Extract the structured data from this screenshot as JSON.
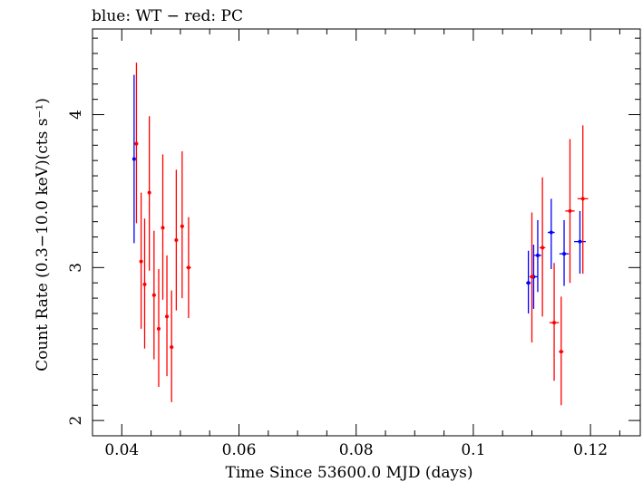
{
  "chart_data": {
    "type": "scatter",
    "title": "blue: WT − red: PC",
    "xlabel": "Time Since 53600.0 MJD (days)",
    "ylabel": "Count Rate (0.3−10.0 keV)(cts s⁻¹)",
    "xlim": [
      0.035,
      0.1285
    ],
    "ylim": [
      1.9,
      4.56
    ],
    "x_ticks": [
      0.04,
      0.06,
      0.08,
      0.1,
      0.12
    ],
    "x_tick_labels": [
      "0.04",
      "0.06",
      "0.08",
      "0.1",
      "0.12"
    ],
    "y_ticks": [
      2,
      3,
      4
    ],
    "y_tick_labels": [
      "2",
      "3",
      "4"
    ],
    "grid": false,
    "series": [
      {
        "name": "WT",
        "color": "#0000ff",
        "points": [
          {
            "x": 0.0421,
            "y": 3.71,
            "xerr": 0.0001,
            "ylo": 3.16,
            "yhi": 4.26
          },
          {
            "x": 0.1094,
            "y": 2.9,
            "xerr": 0.0004,
            "ylo": 2.7,
            "yhi": 3.11
          },
          {
            "x": 0.1103,
            "y": 2.94,
            "xerr": 0.0007,
            "ylo": 2.73,
            "yhi": 3.15
          },
          {
            "x": 0.111,
            "y": 3.08,
            "xerr": 0.0006,
            "ylo": 2.84,
            "yhi": 3.31
          },
          {
            "x": 0.1133,
            "y": 3.23,
            "xerr": 0.0006,
            "ylo": 2.99,
            "yhi": 3.45
          },
          {
            "x": 0.1155,
            "y": 3.09,
            "xerr": 0.0008,
            "ylo": 2.88,
            "yhi": 3.31
          },
          {
            "x": 0.1182,
            "y": 3.17,
            "xerr": 0.001,
            "ylo": 2.96,
            "yhi": 3.37
          }
        ]
      },
      {
        "name": "PC",
        "color": "#ff0000",
        "points": [
          {
            "x": 0.0425,
            "y": 3.81,
            "xerr": 0.0002,
            "ylo": 3.29,
            "yhi": 4.34
          },
          {
            "x": 0.0433,
            "y": 3.04,
            "xerr": 0.0003,
            "ylo": 2.6,
            "yhi": 3.49
          },
          {
            "x": 0.0439,
            "y": 2.89,
            "xerr": 0.0003,
            "ylo": 2.47,
            "yhi": 3.32
          },
          {
            "x": 0.0447,
            "y": 3.49,
            "xerr": 0.0002,
            "ylo": 2.98,
            "yhi": 3.99
          },
          {
            "x": 0.0455,
            "y": 2.82,
            "xerr": 0.0003,
            "ylo": 2.4,
            "yhi": 3.24
          },
          {
            "x": 0.0463,
            "y": 2.6,
            "xerr": 0.0003,
            "ylo": 2.22,
            "yhi": 2.99
          },
          {
            "x": 0.047,
            "y": 3.26,
            "xerr": 0.0003,
            "ylo": 2.79,
            "yhi": 3.74
          },
          {
            "x": 0.0477,
            "y": 2.68,
            "xerr": 0.0003,
            "ylo": 2.29,
            "yhi": 3.08
          },
          {
            "x": 0.0485,
            "y": 2.48,
            "xerr": 0.0003,
            "ylo": 2.12,
            "yhi": 2.85
          },
          {
            "x": 0.0493,
            "y": 3.18,
            "xerr": 0.0003,
            "ylo": 2.72,
            "yhi": 3.64
          },
          {
            "x": 0.0503,
            "y": 3.27,
            "xerr": 0.0003,
            "ylo": 2.8,
            "yhi": 3.76
          },
          {
            "x": 0.0514,
            "y": 3.0,
            "xerr": 0.0004,
            "ylo": 2.67,
            "yhi": 3.33
          },
          {
            "x": 0.11,
            "y": 2.94,
            "xerr": 0.0004,
            "ylo": 2.51,
            "yhi": 3.36
          },
          {
            "x": 0.1118,
            "y": 3.13,
            "xerr": 0.0005,
            "ylo": 2.68,
            "yhi": 3.59
          },
          {
            "x": 0.1138,
            "y": 2.64,
            "xerr": 0.0008,
            "ylo": 2.26,
            "yhi": 3.03
          },
          {
            "x": 0.115,
            "y": 2.45,
            "xerr": 0.0004,
            "ylo": 2.1,
            "yhi": 2.81
          },
          {
            "x": 0.1165,
            "y": 3.37,
            "xerr": 0.0008,
            "ylo": 2.9,
            "yhi": 3.84
          },
          {
            "x": 0.1187,
            "y": 3.45,
            "xerr": 0.0009,
            "ylo": 2.96,
            "yhi": 3.93
          }
        ]
      }
    ]
  }
}
